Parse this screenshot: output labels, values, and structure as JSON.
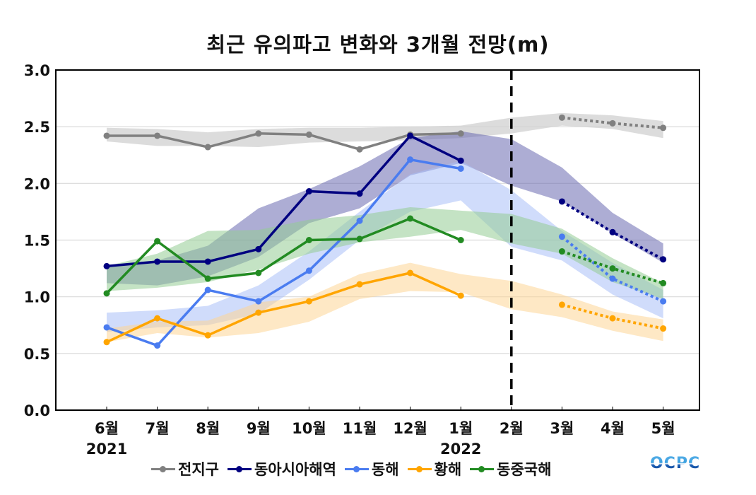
{
  "chart_data": {
    "type": "line",
    "title": "최근 유의파고 변화와 3개월 전망(m)",
    "xlabel": "",
    "ylabel": "",
    "categories": [
      "6월",
      "7월",
      "8월",
      "9월",
      "10월",
      "11월",
      "12월",
      "1월",
      "2월",
      "3월",
      "4월",
      "5월"
    ],
    "year_labels": [
      {
        "index": 0,
        "label": "2021"
      },
      {
        "index": 7,
        "label": "2022"
      }
    ],
    "ylim": [
      0.0,
      3.0
    ],
    "yticks": [
      "0.0",
      "0.5",
      "1.0",
      "1.5",
      "2.0",
      "2.5",
      "3.0"
    ],
    "grid": true,
    "forecast_divider_at": "2월",
    "legend_position": "bottom",
    "series": [
      {
        "name": "전지구",
        "color": "#808080",
        "band_color": "#d3d3d3",
        "observed": [
          2.42,
          2.42,
          2.32,
          2.44,
          2.43,
          2.3,
          2.43,
          2.44,
          null,
          null,
          null,
          null
        ],
        "forecast": [
          null,
          null,
          null,
          null,
          null,
          null,
          null,
          null,
          null,
          2.58,
          2.53,
          2.49
        ],
        "band_upper": [
          2.49,
          2.48,
          2.45,
          2.48,
          2.49,
          2.49,
          2.5,
          2.51,
          2.58,
          2.62,
          2.6,
          2.55
        ],
        "band_lower": [
          2.37,
          2.33,
          2.33,
          2.32,
          2.36,
          2.37,
          2.38,
          2.4,
          2.44,
          2.51,
          2.48,
          2.4
        ]
      },
      {
        "name": "동아시아해역",
        "color": "#000080",
        "band_color": "#6a6ab0",
        "observed": [
          1.27,
          1.31,
          1.31,
          1.42,
          1.93,
          1.91,
          2.42,
          2.2,
          null,
          null,
          null,
          null
        ],
        "forecast": [
          null,
          null,
          null,
          null,
          null,
          null,
          null,
          null,
          null,
          1.84,
          1.57,
          1.33
        ],
        "band_upper": [
          1.27,
          1.32,
          1.45,
          1.78,
          1.95,
          2.15,
          2.4,
          2.46,
          2.39,
          2.14,
          1.74,
          1.47
        ],
        "band_lower": [
          1.12,
          1.1,
          1.18,
          1.35,
          1.65,
          1.78,
          2.07,
          2.18,
          1.98,
          1.84,
          1.56,
          1.3
        ]
      },
      {
        "name": "동해",
        "color": "#4a7cf0",
        "band_color": "#a9c0f8",
        "observed": [
          0.73,
          0.57,
          1.06,
          0.96,
          1.23,
          1.67,
          2.21,
          2.13,
          null,
          null,
          null,
          null
        ],
        "forecast": [
          null,
          null,
          null,
          null,
          null,
          null,
          null,
          null,
          null,
          1.53,
          1.16,
          0.96
        ],
        "band_upper": [
          0.86,
          0.88,
          0.92,
          1.1,
          1.4,
          1.75,
          2.08,
          2.2,
          1.94,
          1.58,
          1.3,
          1.06
        ],
        "band_lower": [
          0.69,
          0.73,
          0.75,
          0.85,
          1.15,
          1.5,
          1.75,
          1.85,
          1.44,
          1.32,
          1.02,
          0.81
        ]
      },
      {
        "name": "황해",
        "color": "#ffa500",
        "band_color": "#fdd595",
        "observed": [
          0.6,
          0.81,
          0.66,
          0.86,
          0.96,
          1.11,
          1.21,
          1.01,
          null,
          null,
          null,
          null
        ],
        "forecast": [
          null,
          null,
          null,
          null,
          null,
          null,
          null,
          null,
          null,
          0.93,
          0.81,
          0.72
        ],
        "band_upper": [
          0.72,
          0.78,
          0.79,
          0.95,
          1.0,
          1.2,
          1.3,
          1.2,
          1.14,
          1.02,
          0.87,
          0.8
        ],
        "band_lower": [
          0.6,
          0.68,
          0.64,
          0.68,
          0.78,
          0.98,
          1.05,
          1.04,
          0.89,
          0.82,
          0.7,
          0.61
        ]
      },
      {
        "name": "동중국해",
        "color": "#228b22",
        "band_color": "#94cc94",
        "observed": [
          1.03,
          1.49,
          1.16,
          1.21,
          1.5,
          1.51,
          1.69,
          1.5,
          null,
          null,
          null,
          null
        ],
        "forecast": [
          null,
          null,
          null,
          null,
          null,
          null,
          null,
          null,
          null,
          1.4,
          1.25,
          1.12
        ],
        "band_upper": [
          1.27,
          1.38,
          1.58,
          1.59,
          1.68,
          1.72,
          1.79,
          1.76,
          1.73,
          1.6,
          1.34,
          1.12
        ],
        "band_lower": [
          1.05,
          1.08,
          1.13,
          1.24,
          1.38,
          1.48,
          1.53,
          1.59,
          1.47,
          1.38,
          1.13,
          0.98
        ]
      }
    ]
  },
  "logo_text": "OCPC"
}
